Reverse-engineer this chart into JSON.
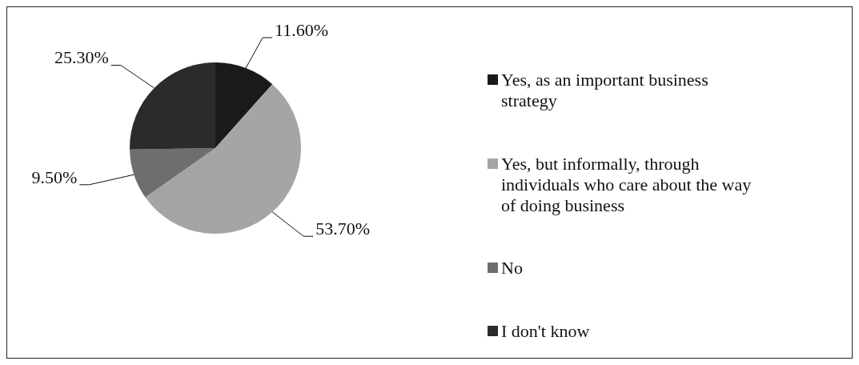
{
  "chart_data": {
    "type": "pie",
    "categories": [
      "Yes, as an important business strategy",
      "Yes, but informally, through individuals who care about the way of doing business",
      "No",
      "I don't know"
    ],
    "values": [
      11.6,
      53.7,
      9.5,
      25.3
    ],
    "colors": [
      "#1a1a1a",
      "#a5a5a5",
      "#6e6e6e",
      "#2b2b2b"
    ],
    "value_labels": [
      "11.60%",
      "53.70%",
      "9.50%",
      "25.30%"
    ],
    "legend": "right"
  }
}
